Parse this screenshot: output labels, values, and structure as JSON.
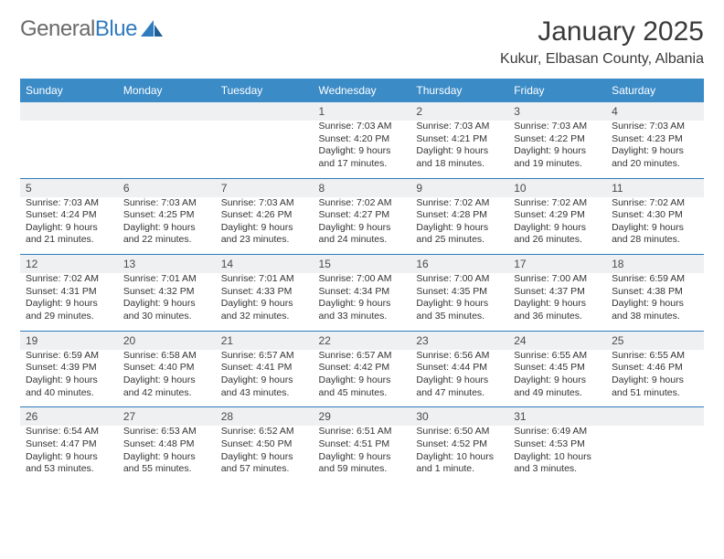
{
  "brand": {
    "name_gray": "General",
    "name_blue": "Blue"
  },
  "title": "January 2025",
  "location": "Kukur, Elbasan County, Albania",
  "colors": {
    "header_bg": "#3b8bc7",
    "daynum_bg": "#eef0f2",
    "row_divider": "#2f7bbf",
    "text": "#333333",
    "title_text": "#3a3a3a"
  },
  "days_of_week": [
    "Sunday",
    "Monday",
    "Tuesday",
    "Wednesday",
    "Thursday",
    "Friday",
    "Saturday"
  ],
  "weeks": [
    [
      {
        "n": "",
        "lines": []
      },
      {
        "n": "",
        "lines": []
      },
      {
        "n": "",
        "lines": []
      },
      {
        "n": "1",
        "lines": [
          "Sunrise: 7:03 AM",
          "Sunset: 4:20 PM",
          "Daylight: 9 hours and 17 minutes."
        ]
      },
      {
        "n": "2",
        "lines": [
          "Sunrise: 7:03 AM",
          "Sunset: 4:21 PM",
          "Daylight: 9 hours and 18 minutes."
        ]
      },
      {
        "n": "3",
        "lines": [
          "Sunrise: 7:03 AM",
          "Sunset: 4:22 PM",
          "Daylight: 9 hours and 19 minutes."
        ]
      },
      {
        "n": "4",
        "lines": [
          "Sunrise: 7:03 AM",
          "Sunset: 4:23 PM",
          "Daylight: 9 hours and 20 minutes."
        ]
      }
    ],
    [
      {
        "n": "5",
        "lines": [
          "Sunrise: 7:03 AM",
          "Sunset: 4:24 PM",
          "Daylight: 9 hours and 21 minutes."
        ]
      },
      {
        "n": "6",
        "lines": [
          "Sunrise: 7:03 AM",
          "Sunset: 4:25 PM",
          "Daylight: 9 hours and 22 minutes."
        ]
      },
      {
        "n": "7",
        "lines": [
          "Sunrise: 7:03 AM",
          "Sunset: 4:26 PM",
          "Daylight: 9 hours and 23 minutes."
        ]
      },
      {
        "n": "8",
        "lines": [
          "Sunrise: 7:02 AM",
          "Sunset: 4:27 PM",
          "Daylight: 9 hours and 24 minutes."
        ]
      },
      {
        "n": "9",
        "lines": [
          "Sunrise: 7:02 AM",
          "Sunset: 4:28 PM",
          "Daylight: 9 hours and 25 minutes."
        ]
      },
      {
        "n": "10",
        "lines": [
          "Sunrise: 7:02 AM",
          "Sunset: 4:29 PM",
          "Daylight: 9 hours and 26 minutes."
        ]
      },
      {
        "n": "11",
        "lines": [
          "Sunrise: 7:02 AM",
          "Sunset: 4:30 PM",
          "Daylight: 9 hours and 28 minutes."
        ]
      }
    ],
    [
      {
        "n": "12",
        "lines": [
          "Sunrise: 7:02 AM",
          "Sunset: 4:31 PM",
          "Daylight: 9 hours and 29 minutes."
        ]
      },
      {
        "n": "13",
        "lines": [
          "Sunrise: 7:01 AM",
          "Sunset: 4:32 PM",
          "Daylight: 9 hours and 30 minutes."
        ]
      },
      {
        "n": "14",
        "lines": [
          "Sunrise: 7:01 AM",
          "Sunset: 4:33 PM",
          "Daylight: 9 hours and 32 minutes."
        ]
      },
      {
        "n": "15",
        "lines": [
          "Sunrise: 7:00 AM",
          "Sunset: 4:34 PM",
          "Daylight: 9 hours and 33 minutes."
        ]
      },
      {
        "n": "16",
        "lines": [
          "Sunrise: 7:00 AM",
          "Sunset: 4:35 PM",
          "Daylight: 9 hours and 35 minutes."
        ]
      },
      {
        "n": "17",
        "lines": [
          "Sunrise: 7:00 AM",
          "Sunset: 4:37 PM",
          "Daylight: 9 hours and 36 minutes."
        ]
      },
      {
        "n": "18",
        "lines": [
          "Sunrise: 6:59 AM",
          "Sunset: 4:38 PM",
          "Daylight: 9 hours and 38 minutes."
        ]
      }
    ],
    [
      {
        "n": "19",
        "lines": [
          "Sunrise: 6:59 AM",
          "Sunset: 4:39 PM",
          "Daylight: 9 hours and 40 minutes."
        ]
      },
      {
        "n": "20",
        "lines": [
          "Sunrise: 6:58 AM",
          "Sunset: 4:40 PM",
          "Daylight: 9 hours and 42 minutes."
        ]
      },
      {
        "n": "21",
        "lines": [
          "Sunrise: 6:57 AM",
          "Sunset: 4:41 PM",
          "Daylight: 9 hours and 43 minutes."
        ]
      },
      {
        "n": "22",
        "lines": [
          "Sunrise: 6:57 AM",
          "Sunset: 4:42 PM",
          "Daylight: 9 hours and 45 minutes."
        ]
      },
      {
        "n": "23",
        "lines": [
          "Sunrise: 6:56 AM",
          "Sunset: 4:44 PM",
          "Daylight: 9 hours and 47 minutes."
        ]
      },
      {
        "n": "24",
        "lines": [
          "Sunrise: 6:55 AM",
          "Sunset: 4:45 PM",
          "Daylight: 9 hours and 49 minutes."
        ]
      },
      {
        "n": "25",
        "lines": [
          "Sunrise: 6:55 AM",
          "Sunset: 4:46 PM",
          "Daylight: 9 hours and 51 minutes."
        ]
      }
    ],
    [
      {
        "n": "26",
        "lines": [
          "Sunrise: 6:54 AM",
          "Sunset: 4:47 PM",
          "Daylight: 9 hours and 53 minutes."
        ]
      },
      {
        "n": "27",
        "lines": [
          "Sunrise: 6:53 AM",
          "Sunset: 4:48 PM",
          "Daylight: 9 hours and 55 minutes."
        ]
      },
      {
        "n": "28",
        "lines": [
          "Sunrise: 6:52 AM",
          "Sunset: 4:50 PM",
          "Daylight: 9 hours and 57 minutes."
        ]
      },
      {
        "n": "29",
        "lines": [
          "Sunrise: 6:51 AM",
          "Sunset: 4:51 PM",
          "Daylight: 9 hours and 59 minutes."
        ]
      },
      {
        "n": "30",
        "lines": [
          "Sunrise: 6:50 AM",
          "Sunset: 4:52 PM",
          "Daylight: 10 hours and 1 minute."
        ]
      },
      {
        "n": "31",
        "lines": [
          "Sunrise: 6:49 AM",
          "Sunset: 4:53 PM",
          "Daylight: 10 hours and 3 minutes."
        ]
      },
      {
        "n": "",
        "lines": []
      }
    ]
  ]
}
